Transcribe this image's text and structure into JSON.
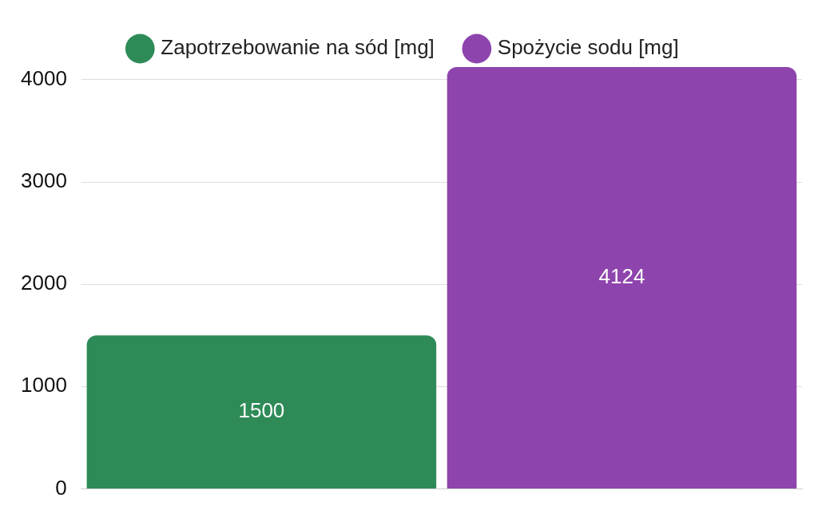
{
  "chart_data": {
    "type": "bar",
    "categories": [
      null
    ],
    "series": [
      {
        "name": "Zapotrzebowanie na sód [mg]",
        "color": "#2e8b57",
        "values": [
          1500
        ]
      },
      {
        "name": "Spożycie sodu [mg]",
        "color": "#8e44ad",
        "values": [
          4124
        ]
      }
    ],
    "ylim": [
      0,
      4124
    ],
    "yticks": [
      0,
      1000,
      2000,
      3000,
      4000
    ],
    "grid": "y",
    "legend": "top",
    "data_labels": true
  }
}
